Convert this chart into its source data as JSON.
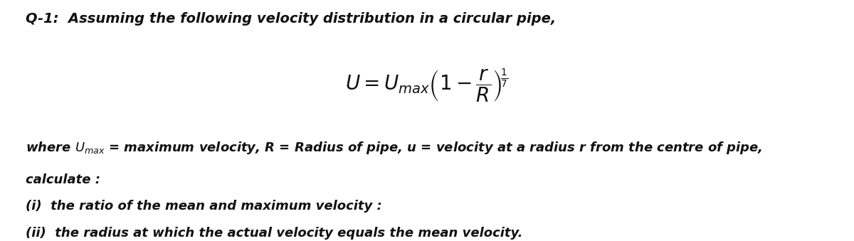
{
  "background_color": "#ffffff",
  "title_line": "Q-1:  Assuming the following velocity distribution in a circular pipe,",
  "line3": "where $U_{max}$ = maximum velocity, R = Radius of pipe, u = velocity at a radius r from the centre of pipe,",
  "line4": "calculate :",
  "line5": "(i)  the ratio of the mean and maximum velocity :",
  "line6": "(ii)  the radius at which the actual velocity equals the mean velocity.",
  "text_color": "#111111",
  "title_fontsize": 14,
  "body_fontsize": 13,
  "formula_fontsize": 20
}
